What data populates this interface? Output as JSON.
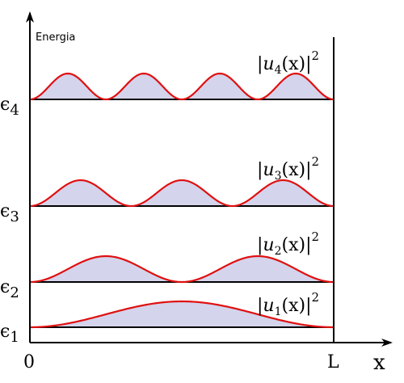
{
  "axis": {
    "y_title": "Energia",
    "x_title": "x",
    "x_origin_label": "0",
    "x_end_label": "L"
  },
  "levels": [
    {
      "symbol": "ϵ",
      "index": "1",
      "n": 1,
      "func_prefix": "|",
      "func_var": "u",
      "func_arg": "(x)|",
      "func_power": "2"
    },
    {
      "symbol": "ϵ",
      "index": "2",
      "n": 2,
      "func_prefix": "|",
      "func_var": "u",
      "func_arg": "(x)|",
      "func_power": "2"
    },
    {
      "symbol": "ϵ",
      "index": "3",
      "n": 3,
      "func_prefix": "|",
      "func_var": "u",
      "func_arg": "(x)|",
      "func_power": "2"
    },
    {
      "symbol": "ϵ",
      "index": "4",
      "n": 4,
      "func_prefix": "|",
      "func_var": "u",
      "func_arg": "(x)|",
      "func_power": "2"
    }
  ],
  "colors": {
    "curve": "#e01010",
    "fill": "#d4d4ec",
    "axis": "#000000"
  }
}
